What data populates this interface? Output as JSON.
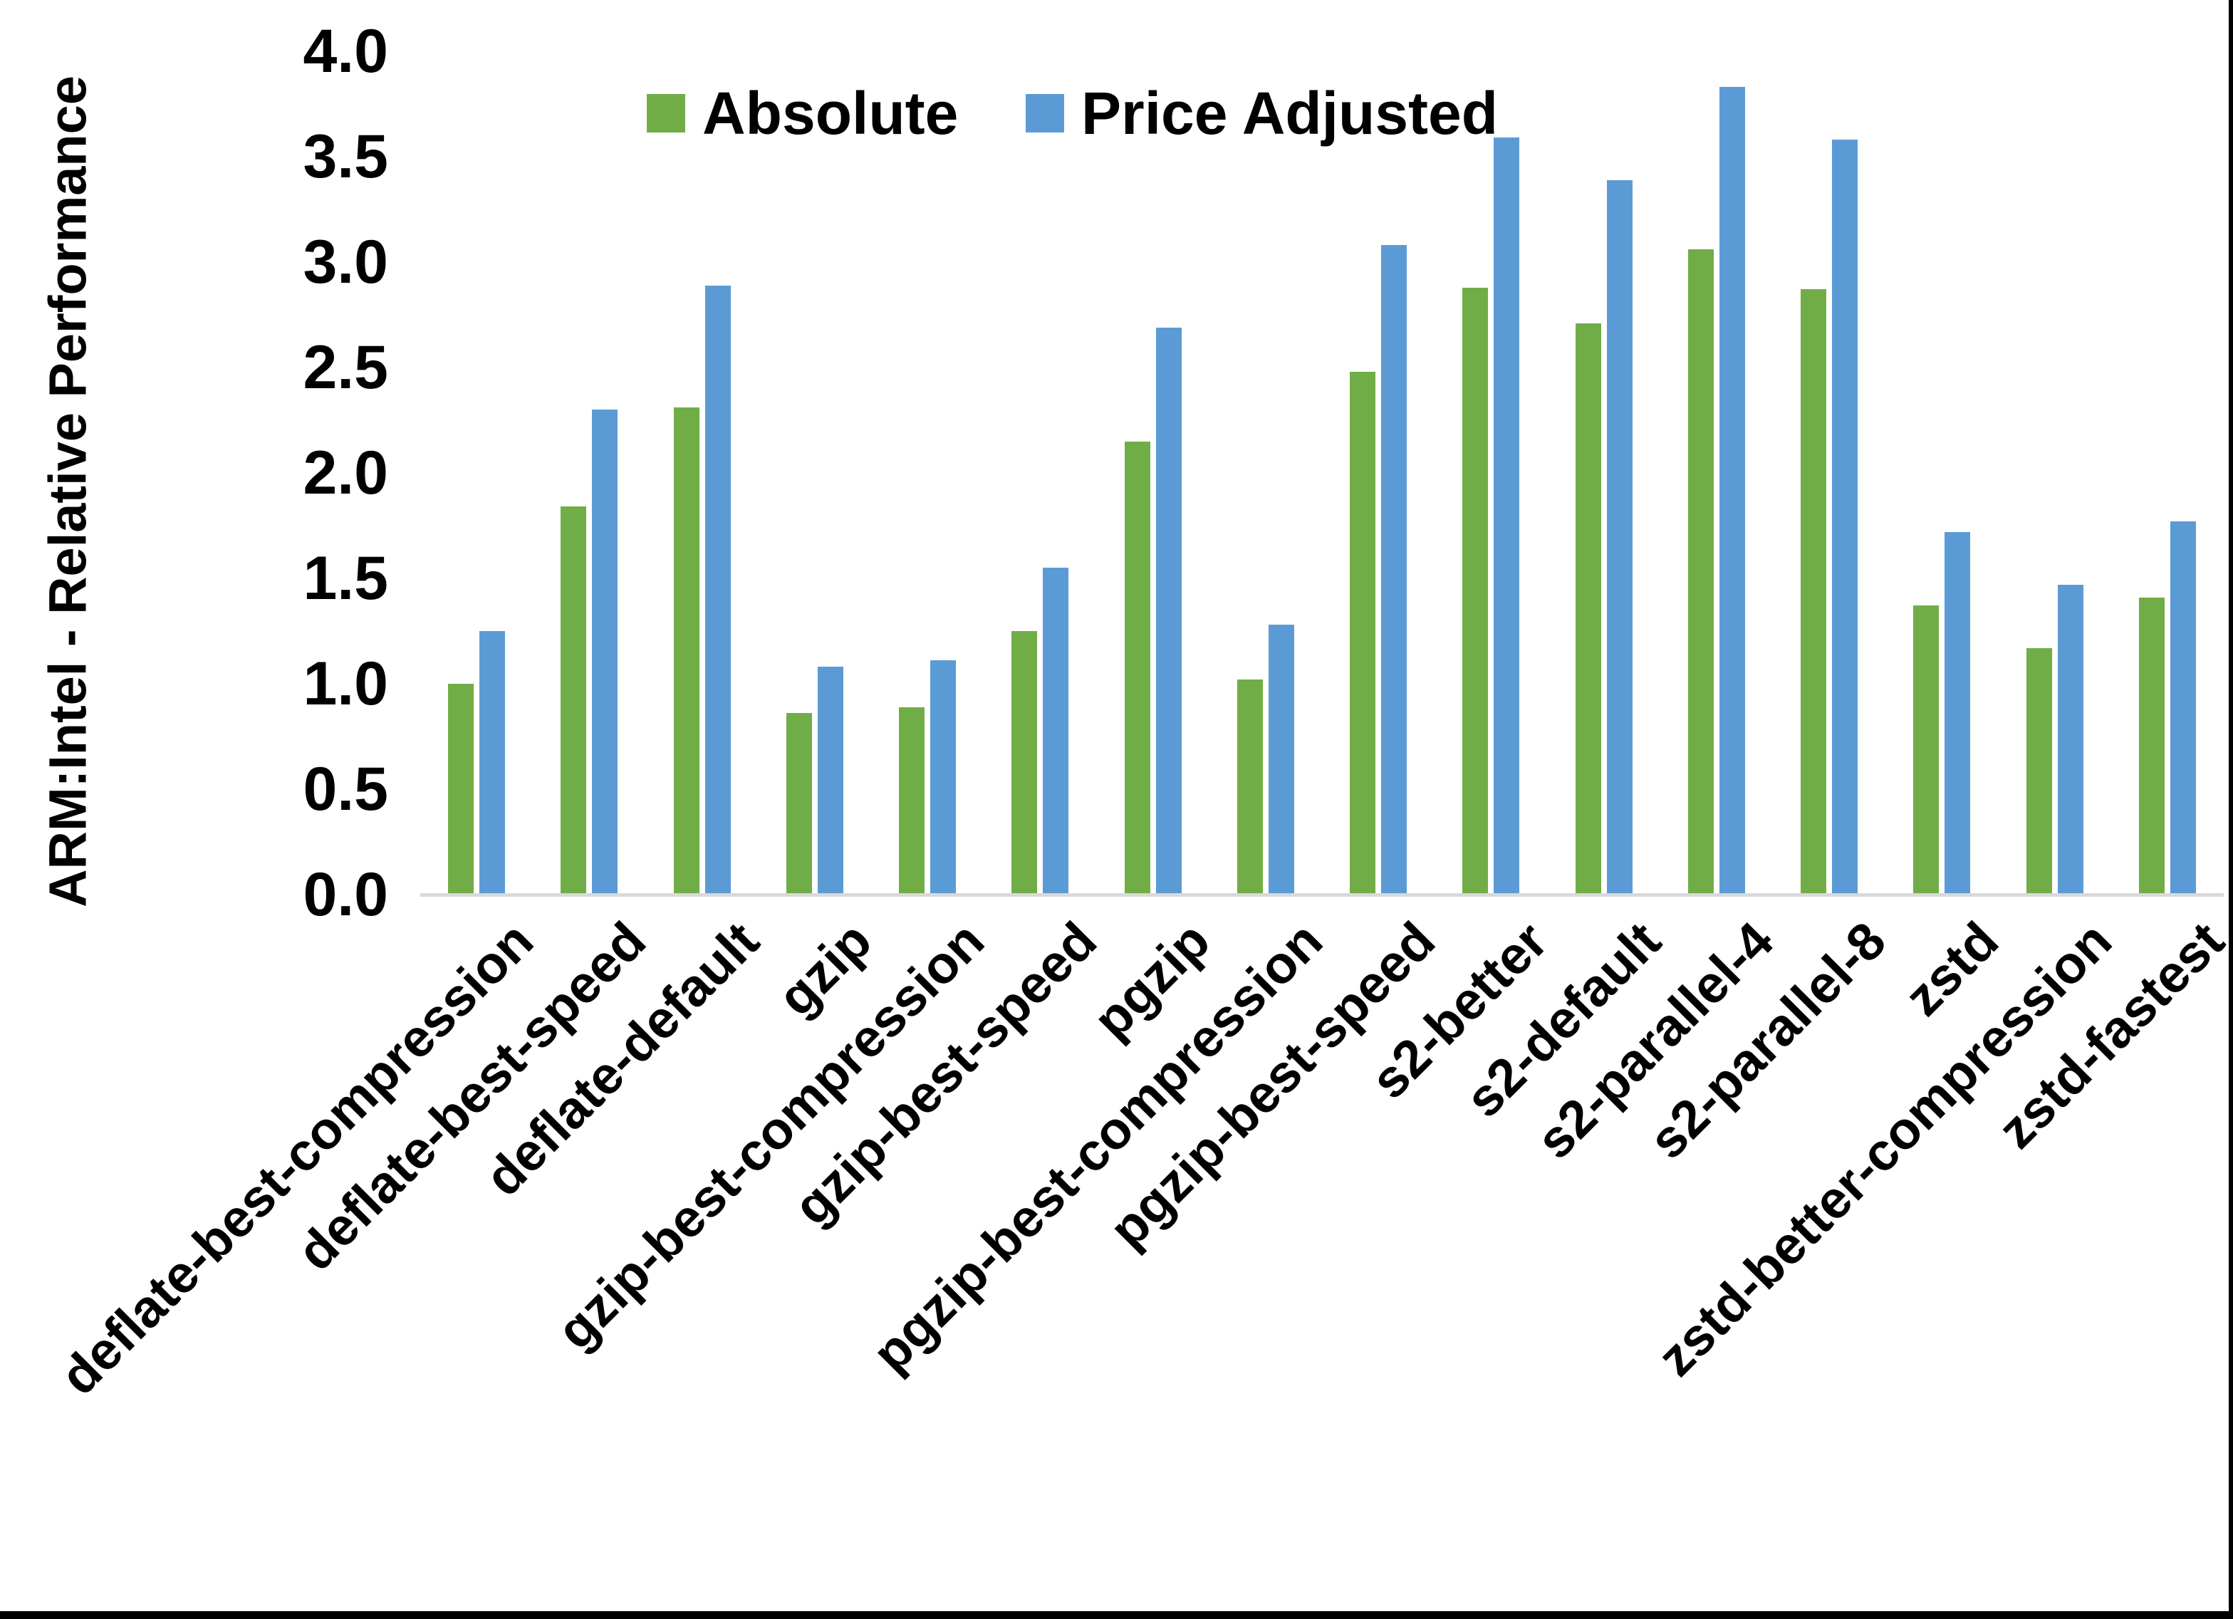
{
  "chart_data": {
    "type": "bar",
    "title": "",
    "xlabel": "",
    "ylabel": "ARM:Intel - Relative Performance",
    "ylim": [
      0.0,
      4.0
    ],
    "ytick_step": 0.5,
    "yticks": [
      "0.0",
      "0.5",
      "1.0",
      "1.5",
      "2.0",
      "2.5",
      "3.0",
      "3.5",
      "4.0"
    ],
    "grid": false,
    "legend_position": "top-center",
    "categories": [
      "deflate-best-compression",
      "deflate-best-speed",
      "deflate-default",
      "gzip",
      "gzip-best-compression",
      "gzip-best-speed",
      "pgzip",
      "pgzip-best-compression",
      "pgzip-best-speed",
      "s2-better",
      "s2-default",
      "s2-parallel-4",
      "s2-parallel-8",
      "zstd",
      "zstd-better-compression",
      "zstd-fastest"
    ],
    "series": [
      {
        "name": "Absolute",
        "color": "#70AD47",
        "values": [
          1.0,
          1.84,
          2.31,
          0.86,
          0.89,
          1.25,
          2.15,
          1.02,
          2.48,
          2.88,
          2.71,
          3.06,
          2.87,
          1.37,
          1.17,
          1.41
        ]
      },
      {
        "name": "Price Adjusted",
        "color": "#5B9BD5",
        "values": [
          1.25,
          2.3,
          2.89,
          1.08,
          1.11,
          1.55,
          2.69,
          1.28,
          3.08,
          3.59,
          3.39,
          3.83,
          3.58,
          1.72,
          1.47,
          1.77
        ]
      }
    ]
  },
  "colors": {
    "background": "#FFFFFF",
    "axis_line": "#D9D9D9",
    "text": "#000000",
    "frame_edge": "#000000"
  }
}
